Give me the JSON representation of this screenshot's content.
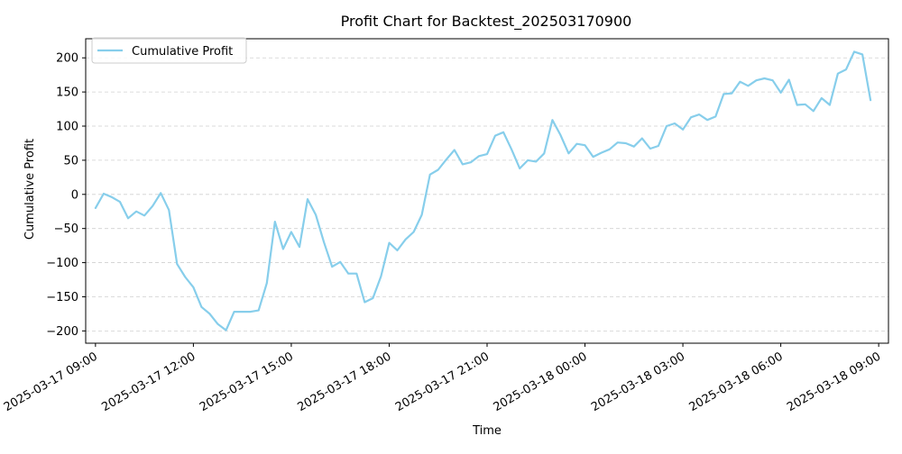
{
  "chart_data": {
    "type": "line",
    "title": "Profit Chart for Backtest_202503170900",
    "xlabel": "Time",
    "ylabel": "Cumulative Profit",
    "ylim": [
      -218,
      228
    ],
    "xlim": [
      "2025-03-17 08:42",
      "2025-03-18 09:18"
    ],
    "grid": {
      "y": true,
      "x": false,
      "style": "dashed"
    },
    "legend": {
      "position": "top-left"
    },
    "y_ticks": [
      -200,
      -150,
      -100,
      -50,
      0,
      50,
      100,
      150,
      200
    ],
    "x_ticks": [
      "2025-03-17 09:00",
      "2025-03-17 12:00",
      "2025-03-17 15:00",
      "2025-03-17 18:00",
      "2025-03-17 21:00",
      "2025-03-18 00:00",
      "2025-03-18 03:00",
      "2025-03-18 06:00",
      "2025-03-18 09:00"
    ],
    "series": [
      {
        "name": "Cumulative Profit",
        "color": "#87ceeb",
        "start": "2025-03-17 09:00",
        "interval_minutes": 15,
        "values": [
          -20,
          1,
          -4,
          -11,
          -35,
          -25,
          -31,
          -17,
          2,
          -23,
          -102,
          -121,
          -136,
          -165,
          -175,
          -190,
          -199,
          -172,
          -172,
          -172,
          -170,
          -130,
          -40,
          -80,
          -55,
          -77,
          -7,
          -30,
          -70,
          -106,
          -99,
          -116,
          -116,
          -158,
          -152,
          -120,
          -71,
          -82,
          -66,
          -55,
          -30,
          29,
          36,
          51,
          65,
          44,
          47,
          56,
          59,
          86,
          91,
          66,
          38,
          50,
          48,
          60,
          109,
          87,
          60,
          74,
          72,
          55,
          61,
          66,
          76,
          75,
          70,
          82,
          67,
          71,
          100,
          104,
          95,
          113,
          117,
          109,
          114,
          147,
          148,
          165,
          159,
          167,
          170,
          167,
          149,
          168,
          131,
          132,
          122,
          141,
          131,
          177,
          183,
          209,
          205,
          138
        ]
      }
    ]
  }
}
